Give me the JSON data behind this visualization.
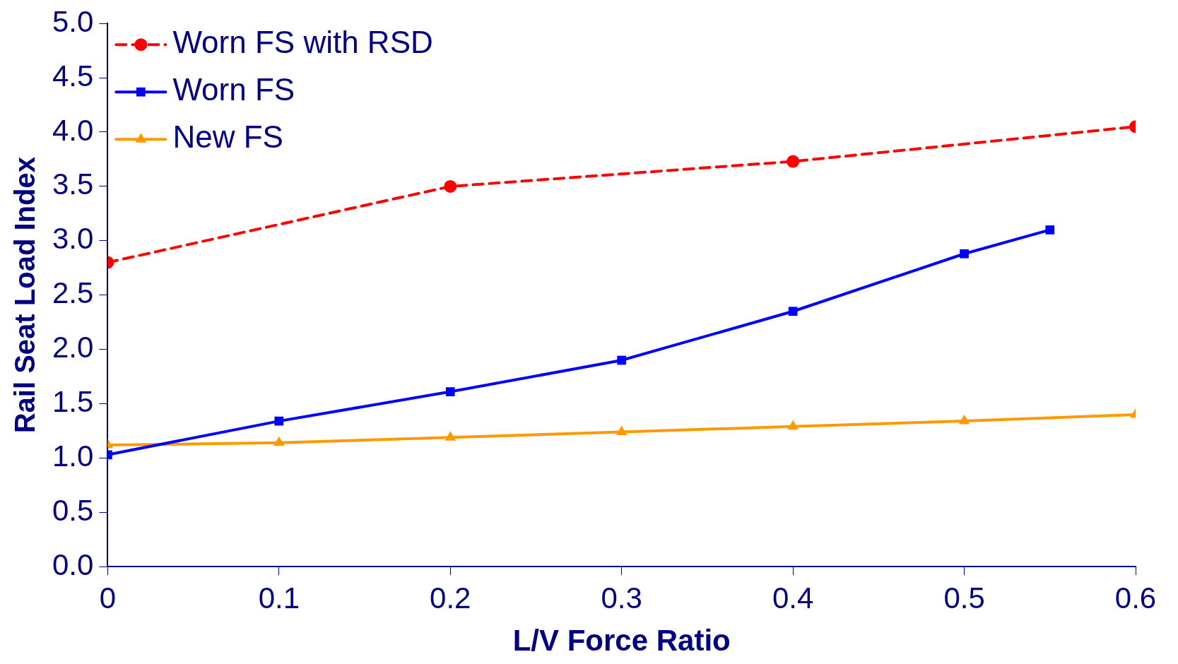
{
  "chart_data": {
    "type": "line",
    "xlabel": "L/V Force Ratio",
    "ylabel": "Rail Seat Load Index",
    "xlim": [
      0,
      0.6
    ],
    "xticks": [
      0,
      0.1,
      0.2,
      0.3,
      0.4,
      0.5,
      0.6
    ],
    "ylim": [
      0,
      5
    ],
    "yticks": [
      {
        "value": 0,
        "label": "0.0"
      },
      {
        "value": 0.5,
        "label": "0.5"
      },
      {
        "value": 1,
        "label": "1.0"
      },
      {
        "value": 1.5,
        "label": "1.5"
      },
      {
        "value": 2,
        "label": "2.0"
      },
      {
        "value": 2.5,
        "label": "2.5"
      },
      {
        "value": 3,
        "label": "3.0"
      },
      {
        "value": 3.5,
        "label": "3.5"
      },
      {
        "value": 4,
        "label": "4.0"
      },
      {
        "value": 4.5,
        "label": "4.5"
      },
      {
        "value": 5,
        "label": "5.0"
      }
    ],
    "grid": false,
    "legend": "top left",
    "series": [
      {
        "name": "Worn FS with RSD",
        "color": "#ff0000",
        "marker": "circle",
        "line_style": "dashed",
        "x": [
          0,
          0.2,
          0.4,
          0.6
        ],
        "values": [
          2.8,
          3.5,
          3.73,
          4.05
        ]
      },
      {
        "name": "Worn FS",
        "color": "#0000ff",
        "marker": "square",
        "line_style": "solid",
        "x": [
          0,
          0.1,
          0.2,
          0.3,
          0.4,
          0.5,
          0.55
        ],
        "values": [
          1.03,
          1.34,
          1.61,
          1.9,
          2.35,
          2.88,
          3.1
        ]
      },
      {
        "name": "New FS",
        "color": "#ff9900",
        "marker": "triangle",
        "line_style": "solid",
        "x": [
          0,
          0.1,
          0.2,
          0.3,
          0.4,
          0.5,
          0.6
        ],
        "values": [
          1.12,
          1.14,
          1.19,
          1.24,
          1.29,
          1.34,
          1.4
        ]
      }
    ]
  }
}
